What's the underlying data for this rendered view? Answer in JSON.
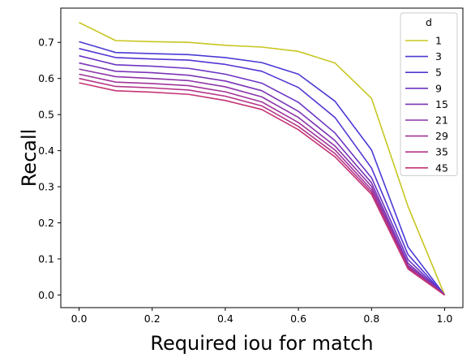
{
  "chart_data": {
    "type": "line",
    "title": "",
    "xlabel": "Required iou for match",
    "ylabel": "Recall",
    "xlim": [
      -0.05,
      1.05
    ],
    "ylim": [
      -0.035,
      0.795
    ],
    "xticks": [
      "0.0",
      "0.2",
      "0.4",
      "0.6",
      "0.8",
      "1.0"
    ],
    "yticks": [
      "0.0",
      "0.1",
      "0.2",
      "0.3",
      "0.4",
      "0.5",
      "0.6",
      "0.7"
    ],
    "grid": false,
    "legend": {
      "title": "d",
      "placement": "top-right"
    },
    "x": [
      0.0,
      0.1,
      0.2,
      0.3,
      0.4,
      0.5,
      0.6,
      0.7,
      0.8,
      0.9,
      1.0
    ],
    "series": [
      {
        "name": "1",
        "color": "#c8c620",
        "values": [
          0.755,
          0.705,
          0.702,
          0.7,
          0.692,
          0.687,
          0.675,
          0.643,
          0.545,
          0.245,
          0.0
        ]
      },
      {
        "name": "3",
        "color": "#4a3ad4",
        "values": [
          0.702,
          0.672,
          0.669,
          0.666,
          0.658,
          0.644,
          0.612,
          0.537,
          0.402,
          0.133,
          0.0
        ]
      },
      {
        "name": "5",
        "color": "#5434d2",
        "values": [
          0.683,
          0.658,
          0.654,
          0.651,
          0.639,
          0.62,
          0.575,
          0.492,
          0.352,
          0.112,
          0.0
        ]
      },
      {
        "name": "9",
        "color": "#6c34c4",
        "values": [
          0.663,
          0.638,
          0.634,
          0.628,
          0.612,
          0.587,
          0.534,
          0.449,
          0.325,
          0.098,
          0.0
        ]
      },
      {
        "name": "15",
        "color": "#7a34b6",
        "values": [
          0.643,
          0.62,
          0.616,
          0.609,
          0.593,
          0.566,
          0.509,
          0.428,
          0.311,
          0.088,
          0.0
        ]
      },
      {
        "name": "21",
        "color": "#8c34a8",
        "values": [
          0.626,
          0.605,
          0.6,
          0.594,
          0.577,
          0.549,
          0.492,
          0.413,
          0.301,
          0.082,
          0.0
        ]
      },
      {
        "name": "29",
        "color": "#a0349a",
        "values": [
          0.612,
          0.59,
          0.586,
          0.58,
          0.563,
          0.535,
          0.478,
          0.402,
          0.292,
          0.078,
          0.0
        ]
      },
      {
        "name": "35",
        "color": "#b43488",
        "values": [
          0.6,
          0.578,
          0.574,
          0.568,
          0.551,
          0.524,
          0.467,
          0.392,
          0.285,
          0.074,
          0.0
        ]
      },
      {
        "name": "45",
        "color": "#c43474",
        "values": [
          0.588,
          0.566,
          0.562,
          0.556,
          0.539,
          0.514,
          0.458,
          0.383,
          0.279,
          0.072,
          0.0
        ]
      }
    ]
  }
}
